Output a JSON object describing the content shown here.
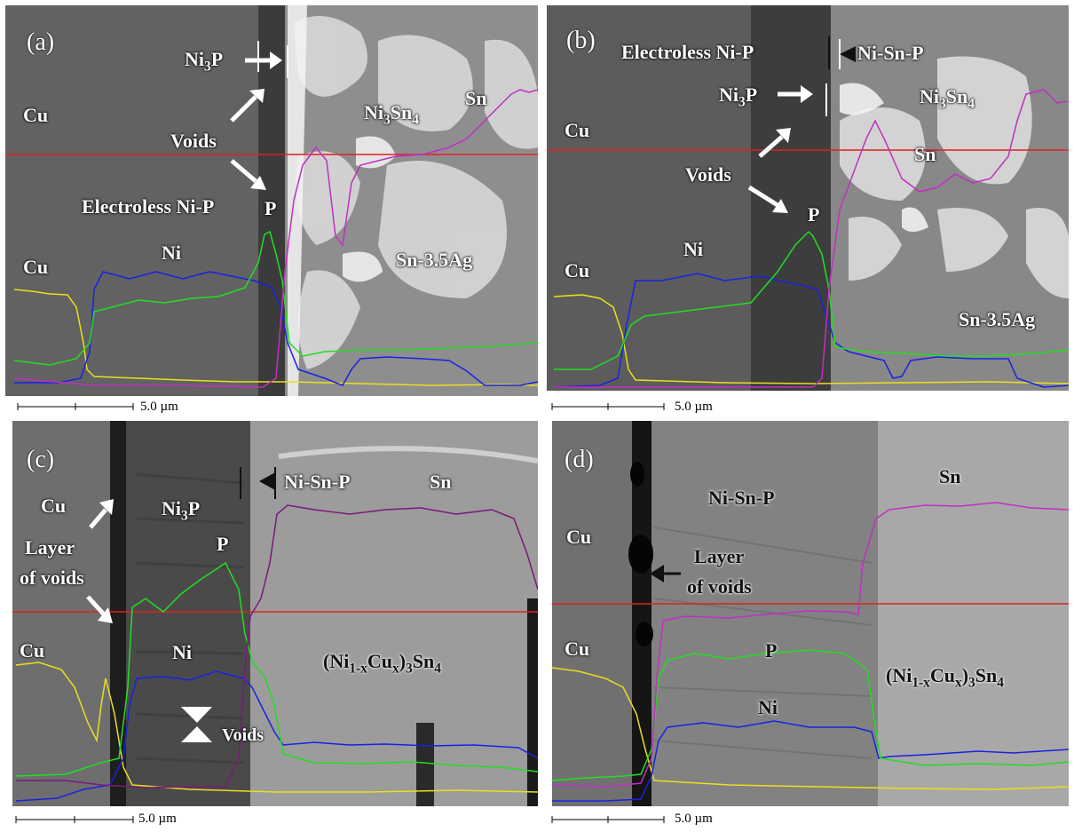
{
  "panels": [
    {
      "id": "a",
      "label": "(a)",
      "scale": "5.0 µm",
      "labels": {
        "cu_top": "Cu",
        "cu_bottom": "Cu",
        "ni3p": "Ni",
        "ni3p_sub": "3",
        "ni3p_tail": "P",
        "voids": "Voids",
        "ni3sn4": "Ni",
        "ni3sn4_sub1": "3",
        "ni3sn4_mid": "Sn",
        "ni3sn4_sub2": "4",
        "sn": "Sn",
        "electroless": "Electroless Ni-P",
        "p": "P",
        "ni": "Ni",
        "solder": "Sn-3.5Ag"
      }
    },
    {
      "id": "b",
      "label": "(b)",
      "scale": "5.0 µm",
      "labels": {
        "electroless": "Electroless Ni-P",
        "nisnp": "Ni-Sn-P",
        "ni3p": "Ni",
        "ni3p_sub": "3",
        "ni3p_tail": "P",
        "ni3sn4": "Ni",
        "ni3sn4_sub1": "3",
        "ni3sn4_mid": "Sn",
        "ni3sn4_sub2": "4",
        "cu_top": "Cu",
        "sn": "Sn",
        "voids": "Voids",
        "p": "P",
        "ni": "Ni",
        "cu_bottom": "Cu",
        "solder": "Sn-3.5Ag"
      }
    },
    {
      "id": "c",
      "label": "(c)",
      "scale": "5.0 µm",
      "labels": {
        "nisnp": "Ni-Sn-P",
        "sn": "Sn",
        "cu_top": "Cu",
        "ni3p": "Ni",
        "ni3p_sub": "3",
        "ni3p_tail": "P",
        "layer": "Layer",
        "of_voids": "of voids",
        "p": "P",
        "cu_bottom": "Cu",
        "ni": "Ni",
        "imc": "(Ni",
        "imc_sub1": "1-x",
        "imc_mid": "Cu",
        "imc_sub2": "x",
        "imc_mid2": ")",
        "imc_sub3": "3",
        "imc_mid3": "Sn",
        "imc_sub4": "4",
        "voids": "Voids"
      }
    },
    {
      "id": "d",
      "label": "(d)",
      "scale": "5.0 µm",
      "labels": {
        "nisnp": "Ni-Sn-P",
        "sn": "Sn",
        "cu_top": "Cu",
        "layer": "Layer",
        "of_voids": "of voids",
        "cu_bottom": "Cu",
        "p": "P",
        "imc": "(Ni",
        "imc_sub1": "1-x",
        "imc_mid": "Cu",
        "imc_sub2": "x",
        "imc_mid2": ")",
        "imc_sub3": "3",
        "imc_mid3": "Sn",
        "imc_sub4": "4",
        "ni": "Ni"
      }
    }
  ],
  "colors": {
    "cu_line": "#e8e020",
    "ni_line": "#1a22e0",
    "p_line": "#22dd22",
    "sn_line": "#c030c0",
    "scan_line": "#e02020"
  }
}
